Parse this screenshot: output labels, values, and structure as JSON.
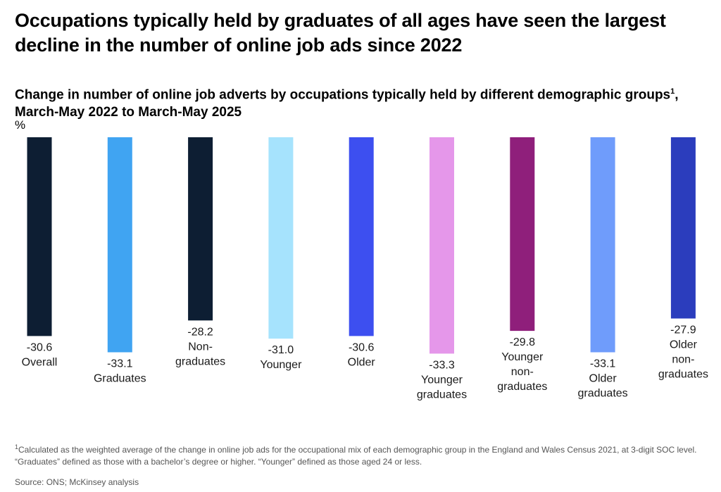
{
  "headline": "Occupations typically held by graduates of all ages have seen the largest decline in the number of online job ads since 2022",
  "subtitle_text": "Change in number of online job adverts by occupations typically held by different demographic groups",
  "subtitle_sup": "1",
  "subtitle_end": ", March-May 2022 to March-May 2025",
  "unit": "%",
  "footnote_sup": "1",
  "footnote_text": "Calculated as the weighted average of the change in online job ads for the occupational mix of each demographic group in the England and Wales Census 2021, at 3-digit SOC level. “Graduates” defined as those with a bachelor’s degree or higher. “Younger” defined as those aged 24 or less.",
  "source": "Source: ONS; McKinsey analysis",
  "chart_data": {
    "type": "bar",
    "title": "Change in number of online job adverts by occupations typically held by different demographic groups, March-May 2022 to March-May 2025",
    "ylabel": "%",
    "ylim": [
      -34,
      0
    ],
    "grid": false,
    "legend": "none",
    "categories": [
      "Overall",
      "Graduates",
      "Non-graduates",
      "Younger",
      "Older",
      "Younger graduates",
      "Younger non-graduates",
      "Older graduates",
      "Older non-graduates"
    ],
    "category_lines": [
      [
        "Overall"
      ],
      [
        "Graduates"
      ],
      [
        "Non-",
        "graduates"
      ],
      [
        "Younger"
      ],
      [
        "Older"
      ],
      [
        "Younger",
        "graduates"
      ],
      [
        "Younger",
        "non-",
        "graduates"
      ],
      [
        "Older",
        "graduates"
      ],
      [
        "Older",
        "non-",
        "graduates"
      ]
    ],
    "values": [
      -30.6,
      -33.1,
      -28.2,
      -31.0,
      -30.6,
      -33.3,
      -29.8,
      -33.1,
      -27.9
    ],
    "value_labels": [
      "-30.6",
      "-33.1",
      "-28.2",
      "-31.0",
      "-30.6",
      "-33.3",
      "-29.8",
      "-33.1",
      "-27.9"
    ],
    "colors": [
      "#0d1e33",
      "#40a4f2",
      "#0d1e33",
      "#a6e3fd",
      "#3d4ff0",
      "#e597ea",
      "#8f1f7b",
      "#6f9cfb",
      "#2b3dbd"
    ]
  }
}
